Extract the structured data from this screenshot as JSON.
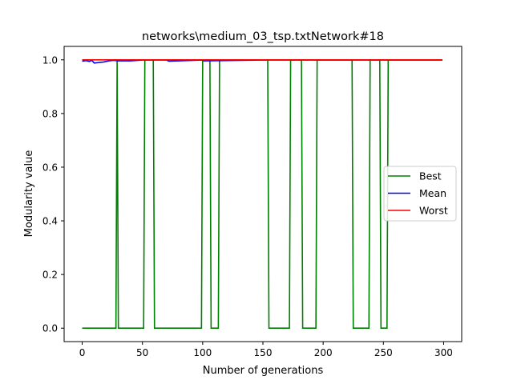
{
  "chart_data": {
    "type": "line",
    "title": "networks\\medium_03_tsp.txtNetwork#18",
    "xlabel": "Number of generations",
    "ylabel": "Modularity value",
    "xlim": [
      -15,
      315
    ],
    "ylim": [
      -0.05,
      1.05
    ],
    "xticks": [
      0,
      50,
      100,
      150,
      200,
      250,
      300
    ],
    "yticks": [
      0.0,
      0.2,
      0.4,
      0.6,
      0.8,
      1.0
    ],
    "xtick_labels": [
      "0",
      "50",
      "100",
      "150",
      "200",
      "250",
      "300"
    ],
    "ytick_labels": [
      "0.0",
      "0.2",
      "0.4",
      "0.6",
      "0.8",
      "1.0"
    ],
    "grid": false,
    "legend_position": "center-right",
    "series": [
      {
        "name": "Best",
        "color": "#008000",
        "x": [
          0,
          28,
          29,
          30,
          51,
          52,
          59,
          60,
          99,
          100,
          106,
          107,
          113,
          114,
          154,
          155,
          172,
          173,
          182,
          183,
          194,
          195,
          224,
          225,
          238,
          239,
          247,
          248,
          253,
          254,
          299
        ],
        "y": [
          0,
          0,
          1,
          0,
          0,
          1,
          1,
          0,
          0,
          1,
          1,
          0,
          0,
          1,
          1,
          0,
          0,
          1,
          1,
          0,
          0,
          1,
          1,
          0,
          0,
          1,
          1,
          0,
          0,
          1,
          1
        ]
      },
      {
        "name": "Mean",
        "color": "#0000ff",
        "x": [
          0,
          3,
          6,
          8,
          10,
          14,
          18,
          22,
          26,
          30,
          40,
          50,
          70,
          72,
          100,
          101,
          150,
          299
        ],
        "y": [
          0.995,
          0.997,
          0.994,
          0.998,
          0.988,
          0.99,
          0.992,
          0.996,
          0.998,
          0.996,
          0.996,
          0.999,
          0.999,
          0.995,
          0.999,
          0.996,
          0.999,
          0.999
        ]
      },
      {
        "name": "Worst",
        "color": "#ff0000",
        "x": [
          0,
          299
        ],
        "y": [
          1,
          1
        ]
      }
    ]
  }
}
